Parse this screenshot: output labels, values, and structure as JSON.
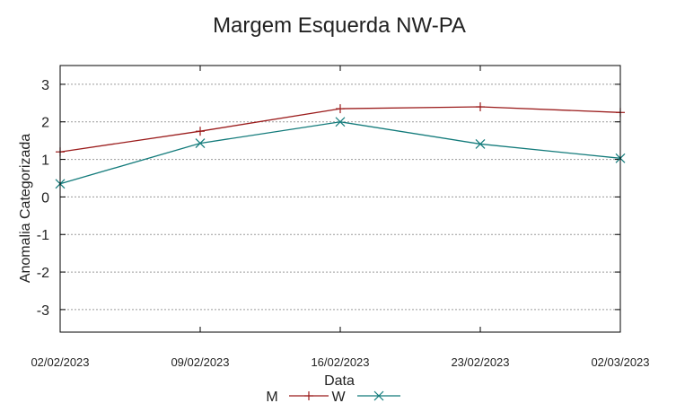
{
  "chart_data": {
    "type": "line",
    "title": "Margem Esquerda NW-PA",
    "xlabel": "Data",
    "ylabel": "Anomalia Categorizada",
    "categories": [
      "02/02/2023",
      "09/02/2023",
      "16/02/2023",
      "23/02/2023",
      "02/03/2023"
    ],
    "ylim": [
      -3.6,
      3.5
    ],
    "yticks": [
      3,
      2,
      1,
      0,
      -1,
      -2,
      -3
    ],
    "ytick_labels": [
      "3",
      "2",
      "1",
      "0",
      "-1",
      "-2",
      "-3"
    ],
    "grid": true,
    "legend_position": "bottom",
    "series": [
      {
        "name": "M",
        "color": "#9b1c1c",
        "marker": "plus",
        "values": [
          1.2,
          1.75,
          2.35,
          2.4,
          2.25
        ]
      },
      {
        "name": "W",
        "color": "#137b7b",
        "marker": "x",
        "values": [
          0.35,
          1.43,
          2.0,
          1.41,
          1.03
        ]
      }
    ]
  }
}
